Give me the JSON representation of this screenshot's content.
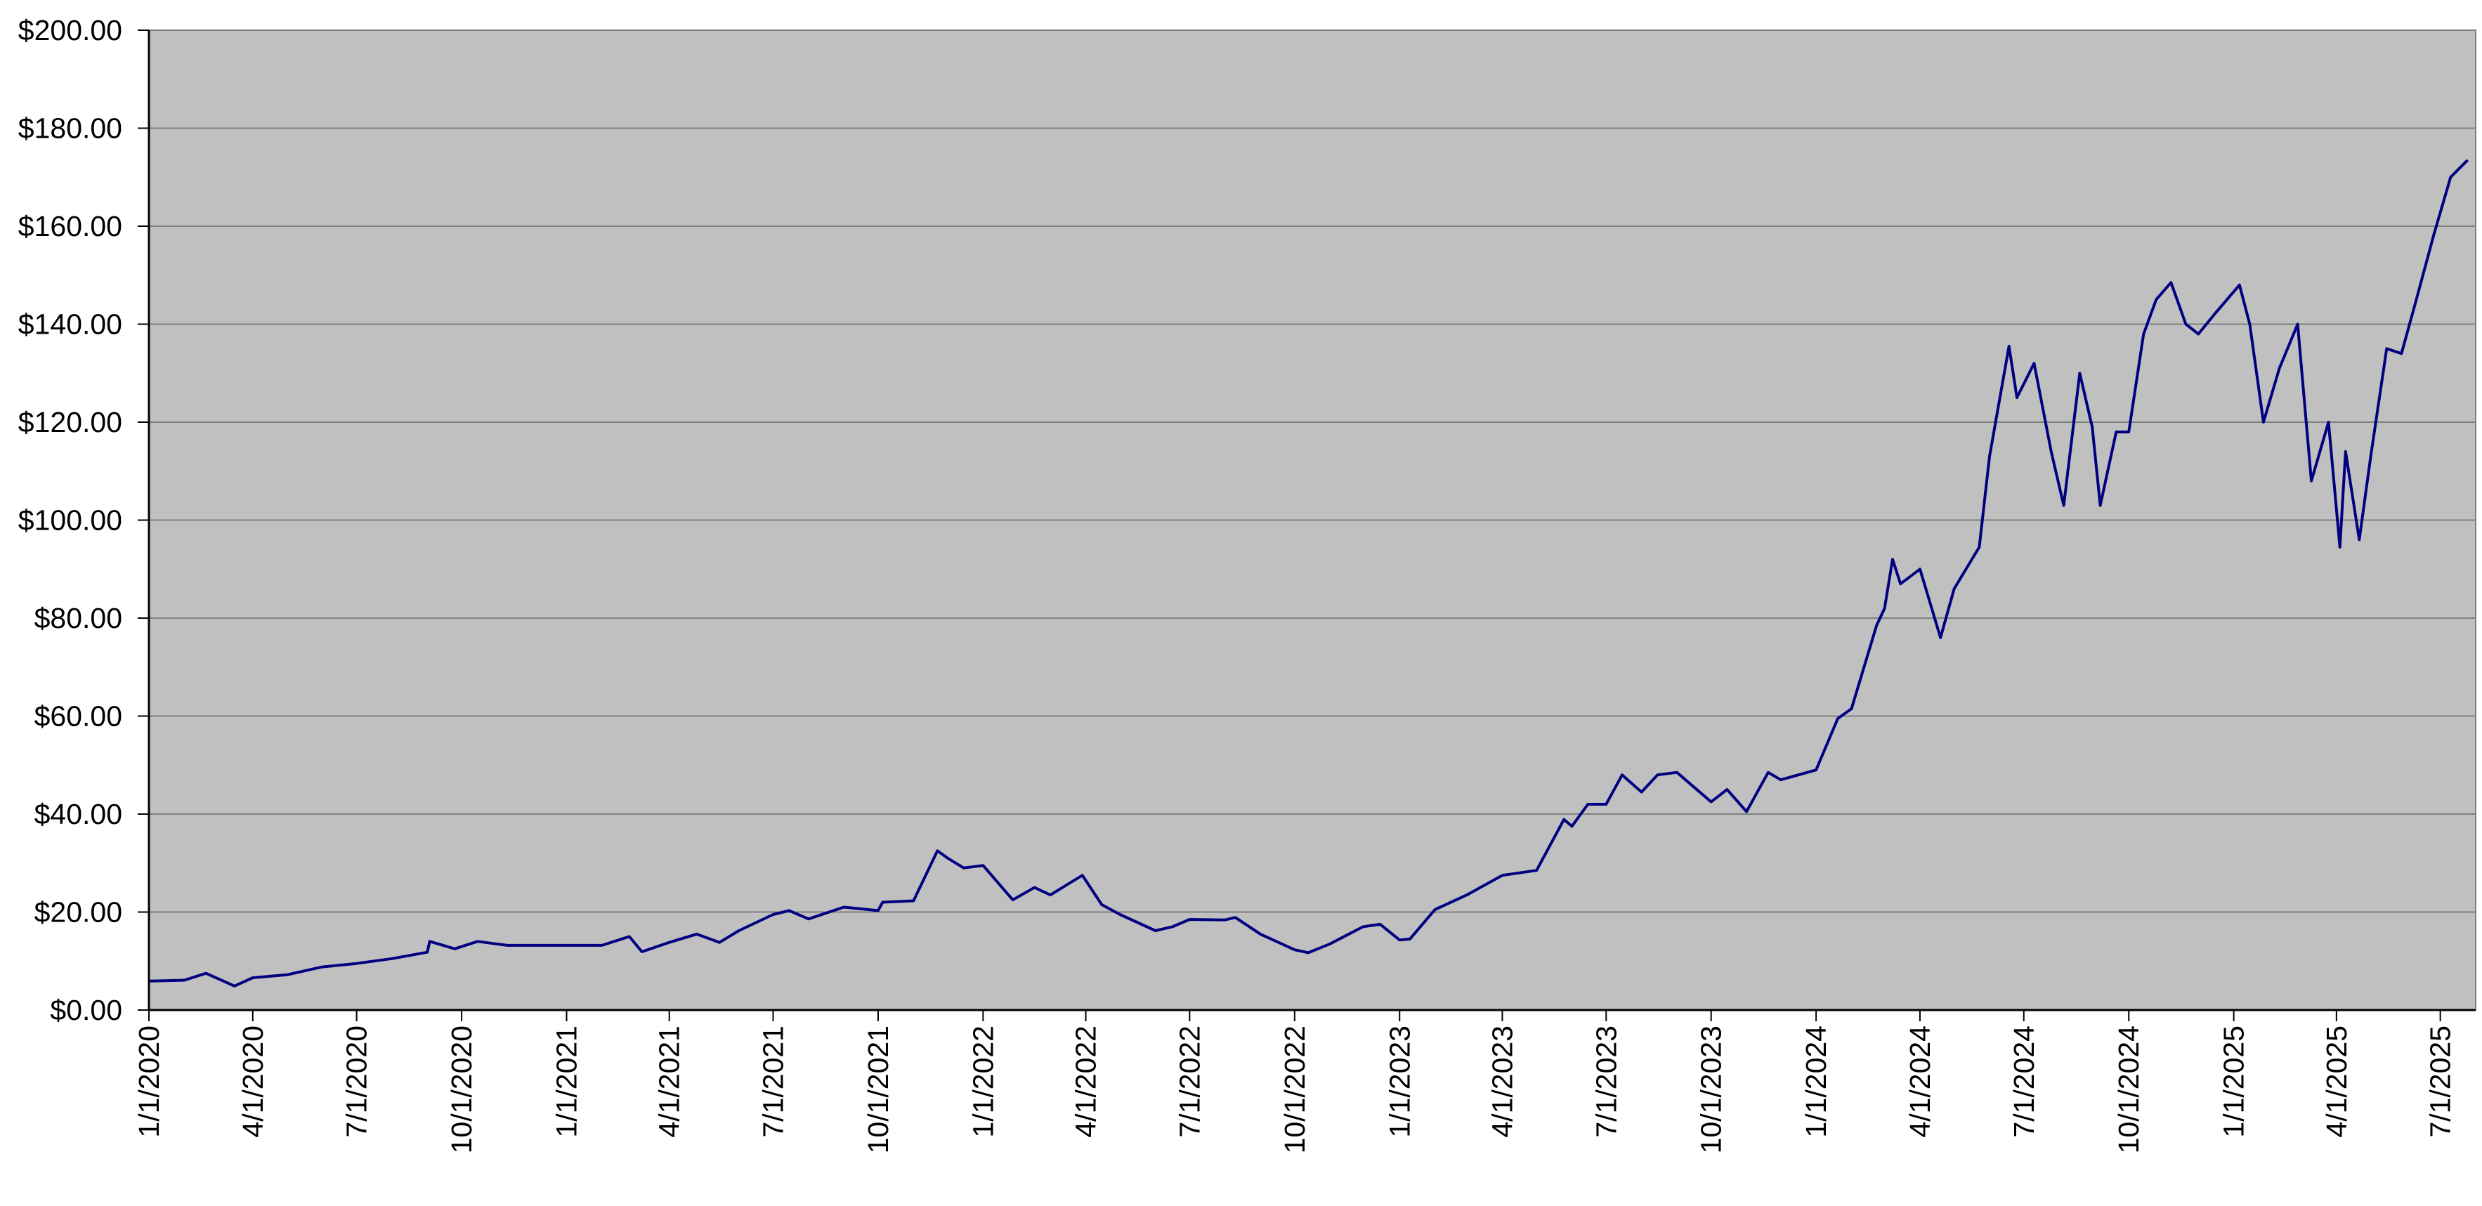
{
  "chart_data": {
    "type": "line",
    "title": "",
    "xlabel": "",
    "ylabel": "",
    "x_tick_labels": [
      "1/1/2020",
      "4/1/2020",
      "7/1/2020",
      "10/1/2020",
      "1/1/2021",
      "4/1/2021",
      "7/1/2021",
      "10/1/2021",
      "1/1/2022",
      "4/1/2022",
      "7/1/2022",
      "10/1/2022",
      "1/1/2023",
      "4/1/2023",
      "7/1/2023",
      "10/1/2023",
      "1/1/2024",
      "4/1/2024",
      "7/1/2024",
      "10/1/2024",
      "1/1/2025",
      "4/1/2025",
      "7/1/2025"
    ],
    "y_tick_labels": [
      "$0.00",
      "$20.00",
      "$40.00",
      "$60.00",
      "$80.00",
      "$100.00",
      "$120.00",
      "$140.00",
      "$160.00",
      "$180.00",
      "$200.00"
    ],
    "xlim": [
      "2020-01-01",
      "2025-08-01"
    ],
    "ylim": [
      0,
      200
    ],
    "grid": "horizontal",
    "legend": "none",
    "colors": {
      "plot_background": "#c0c0c0",
      "line": "#000080",
      "grid": "#808080",
      "axis": "#000000"
    },
    "series": [
      {
        "x": [
          "2020-01-02",
          "2020-02-01",
          "2020-02-20",
          "2020-03-16",
          "2020-04-01",
          "2020-05-01",
          "2020-06-01",
          "2020-07-01",
          "2020-08-01",
          "2020-09-01",
          "2020-09-03",
          "2020-09-25",
          "2020-10-15",
          "2020-11-10",
          "2020-12-01",
          "2021-01-01",
          "2021-02-01",
          "2021-02-25",
          "2021-03-08",
          "2021-04-01",
          "2021-04-25",
          "2021-05-15",
          "2021-06-01",
          "2021-07-01",
          "2021-07-15",
          "2021-08-01",
          "2021-09-01",
          "2021-10-01",
          "2021-10-05",
          "2021-11-01",
          "2021-11-22",
          "2021-12-01",
          "2021-12-15",
          "2022-01-01",
          "2022-01-27",
          "2022-02-15",
          "2022-03-01",
          "2022-03-29",
          "2022-04-15",
          "2022-05-01",
          "2022-06-01",
          "2022-06-16",
          "2022-07-01",
          "2022-08-01",
          "2022-08-10",
          "2022-09-01",
          "2022-10-01",
          "2022-10-13",
          "2022-11-01",
          "2022-11-30",
          "2022-12-15",
          "2023-01-01",
          "2023-01-10",
          "2023-02-01",
          "2023-03-01",
          "2023-04-01",
          "2023-05-01",
          "2023-05-25",
          "2023-06-01",
          "2023-06-15",
          "2023-07-01",
          "2023-07-15",
          "2023-08-01",
          "2023-08-15",
          "2023-09-01",
          "2023-10-01",
          "2023-10-15",
          "2023-11-01",
          "2023-11-20",
          "2023-12-01",
          "2024-01-01",
          "2024-01-20",
          "2024-02-01",
          "2024-02-23",
          "2024-03-01",
          "2024-03-08",
          "2024-03-15",
          "2024-04-01",
          "2024-04-19",
          "2024-05-01",
          "2024-05-23",
          "2024-06-01",
          "2024-06-18",
          "2024-06-25",
          "2024-07-10",
          "2024-07-25",
          "2024-08-05",
          "2024-08-19",
          "2024-08-30",
          "2024-09-06",
          "2024-09-20",
          "2024-10-01",
          "2024-10-14",
          "2024-10-25",
          "2024-11-07",
          "2024-11-20",
          "2024-12-01",
          "2024-12-15",
          "2025-01-06",
          "2025-01-15",
          "2025-01-27",
          "2025-02-10",
          "2025-02-26",
          "2025-03-10",
          "2025-03-25",
          "2025-04-04",
          "2025-04-09",
          "2025-04-21",
          "2025-05-01",
          "2025-05-15",
          "2025-05-28",
          "2025-06-10",
          "2025-06-25",
          "2025-07-10",
          "2025-07-25"
        ],
        "y": [
          5.9,
          6.1,
          7.5,
          4.9,
          6.6,
          7.2,
          8.8,
          9.5,
          10.5,
          11.8,
          14.0,
          12.5,
          14.0,
          13.2,
          13.2,
          13.2,
          13.2,
          15.0,
          11.9,
          13.8,
          15.5,
          13.8,
          16.2,
          19.5,
          20.3,
          18.6,
          21.0,
          20.3,
          22.0,
          22.3,
          32.5,
          31.0,
          29.0,
          29.5,
          22.5,
          25.0,
          23.5,
          27.5,
          21.5,
          19.5,
          16.2,
          17.0,
          18.5,
          18.4,
          18.9,
          15.5,
          12.3,
          11.7,
          13.5,
          17.0,
          17.5,
          14.3,
          14.5,
          20.5,
          23.5,
          27.5,
          28.5,
          38.9,
          37.5,
          42.0,
          42.0,
          48.0,
          44.5,
          48.0,
          48.5,
          42.5,
          45.0,
          40.5,
          48.5,
          47.0,
          49.0,
          59.5,
          61.5,
          78.5,
          82.0,
          92.0,
          87.0,
          90.0,
          76.0,
          86.0,
          94.5,
          113.0,
          135.5,
          125.0,
          132.0,
          114.0,
          103.0,
          130.0,
          119.0,
          103.0,
          118.0,
          118.0,
          138.0,
          145.0,
          148.5,
          140.0,
          138.0,
          142.0,
          148.0,
          140.0,
          120.0,
          131.0,
          140.0,
          108.0,
          120.0,
          94.5,
          114.0,
          96.0,
          113.0,
          135.0,
          134.0,
          145.0,
          158.0,
          170.0,
          173.5
        ]
      }
    ]
  }
}
